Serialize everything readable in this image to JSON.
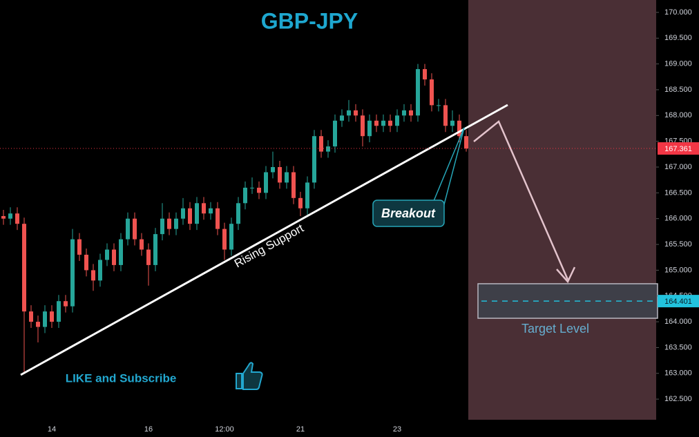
{
  "chart_data": {
    "type": "candlestick",
    "title": "GBP-JPY",
    "categories": [
      null,
      null,
      null,
      null,
      null,
      null,
      null,
      "14",
      null,
      null,
      null,
      null,
      null,
      null,
      null,
      null,
      null,
      null,
      null,
      null,
      null,
      "16",
      null,
      null,
      null,
      null,
      null,
      null,
      null,
      null,
      null,
      null,
      "12:00",
      null,
      null,
      null,
      null,
      null,
      null,
      null,
      null,
      null,
      null,
      "21",
      null,
      null,
      null,
      null,
      null,
      null,
      null,
      null,
      null,
      null,
      null,
      null,
      null,
      "23",
      null,
      null,
      null,
      null,
      null,
      null,
      null,
      null,
      null,
      null
    ],
    "open": [
      166.05,
      166.0,
      166.1,
      165.9,
      164.2,
      164.0,
      163.9,
      164.2,
      164.0,
      164.4,
      164.3,
      165.6,
      165.3,
      165.0,
      164.8,
      165.2,
      165.4,
      165.1,
      165.6,
      166.0,
      165.6,
      165.4,
      165.1,
      165.7,
      166.0,
      165.8,
      166.0,
      166.2,
      165.9,
      166.3,
      166.1,
      166.2,
      165.8,
      165.4,
      165.9,
      166.3,
      166.6,
      166.6,
      166.5,
      166.9,
      167.0,
      166.7,
      166.9,
      166.4,
      166.2,
      166.7,
      167.6,
      167.3,
      167.4,
      167.9,
      168.0,
      168.1,
      168.0,
      167.6,
      167.9,
      167.8,
      167.9,
      167.8,
      168.0,
      168.1,
      168.0,
      168.9,
      168.7,
      168.2,
      168.2,
      167.8,
      167.9,
      167.6
    ],
    "high": [
      166.17,
      166.22,
      166.22,
      166.02,
      164.32,
      164.12,
      164.32,
      164.32,
      164.52,
      164.52,
      165.8,
      165.72,
      165.42,
      165.12,
      165.32,
      165.52,
      165.52,
      165.72,
      166.12,
      166.12,
      165.72,
      165.52,
      165.82,
      166.3,
      166.12,
      166.12,
      166.4,
      166.32,
      166.42,
      166.42,
      166.32,
      166.32,
      165.92,
      166.02,
      166.42,
      166.72,
      166.8,
      166.72,
      167.02,
      167.3,
      167.12,
      167.02,
      167.02,
      166.52,
      166.82,
      167.72,
      167.72,
      167.52,
      168.02,
      168.12,
      168.3,
      168.22,
      168.12,
      168.02,
      168.02,
      168.02,
      168.02,
      168.12,
      168.22,
      168.22,
      169.0,
      169.0,
      168.82,
      168.32,
      168.32,
      168.1,
      168.02,
      167.72
    ],
    "low": [
      165.88,
      165.88,
      165.78,
      163.0,
      163.88,
      163.6,
      163.78,
      163.88,
      163.88,
      164.18,
      164.18,
      165.18,
      164.88,
      164.6,
      164.68,
      165.08,
      164.98,
      164.98,
      165.48,
      165.48,
      165.28,
      164.7,
      164.98,
      165.58,
      165.68,
      165.68,
      165.88,
      165.78,
      165.78,
      165.98,
      165.98,
      165.68,
      165.2,
      165.28,
      165.78,
      166.18,
      166.48,
      166.38,
      166.38,
      166.78,
      166.58,
      166.58,
      166.28,
      166.05,
      166.08,
      166.58,
      167.18,
      167.18,
      167.28,
      167.78,
      167.88,
      167.88,
      167.4,
      167.48,
      167.68,
      167.68,
      167.68,
      167.68,
      167.88,
      167.88,
      167.88,
      168.58,
      168.08,
      168.08,
      167.68,
      167.68,
      167.48,
      167.3
    ],
    "close": [
      166.0,
      166.1,
      165.9,
      164.2,
      164.0,
      163.9,
      164.2,
      164.0,
      164.4,
      164.3,
      165.6,
      165.3,
      165.0,
      164.8,
      165.2,
      165.4,
      165.1,
      165.6,
      166.0,
      165.6,
      165.4,
      165.1,
      165.7,
      166.0,
      165.8,
      166.0,
      166.2,
      165.9,
      166.3,
      166.1,
      166.2,
      165.8,
      165.4,
      165.9,
      166.3,
      166.6,
      166.6,
      166.5,
      166.9,
      167.0,
      166.7,
      166.9,
      166.4,
      166.2,
      166.7,
      167.6,
      167.3,
      167.4,
      167.9,
      168.0,
      168.1,
      168.0,
      167.6,
      167.9,
      167.8,
      167.9,
      167.8,
      168.0,
      168.1,
      168.0,
      168.9,
      168.7,
      168.2,
      168.2,
      167.8,
      167.9,
      167.6,
      167.36
    ],
    "up_color": "#26a69a",
    "down_color": "#ef5350",
    "ylim": [
      162.1,
      170.24
    ],
    "yticks": [
      {
        "value": 162.5,
        "label": "162.500"
      },
      {
        "value": 163,
        "label": "163.000"
      },
      {
        "value": 163.5,
        "label": "163.500"
      },
      {
        "value": 164,
        "label": "164.000"
      },
      {
        "value": 164.5,
        "label": "164.500"
      },
      {
        "value": 165,
        "label": "165.000"
      },
      {
        "value": 165.5,
        "label": "165.500"
      },
      {
        "value": 166,
        "label": "166.000"
      },
      {
        "value": 166.5,
        "label": "166.500"
      },
      {
        "value": 167,
        "label": "167.000"
      },
      {
        "value": 167.5,
        "label": "167.500"
      },
      {
        "value": 168,
        "label": "168.000"
      },
      {
        "value": 168.5,
        "label": "168.500"
      },
      {
        "value": 169,
        "label": "169.000"
      },
      {
        "value": 169.5,
        "label": "169.500"
      },
      {
        "value": 170,
        "label": "170.000"
      }
    ],
    "current_price": 167.361,
    "target_price": 164.401,
    "annotations": {
      "support": "Rising Support",
      "breakout": "Breakout",
      "target": "Target Level",
      "promo": "LIKE and Subscribe"
    }
  }
}
